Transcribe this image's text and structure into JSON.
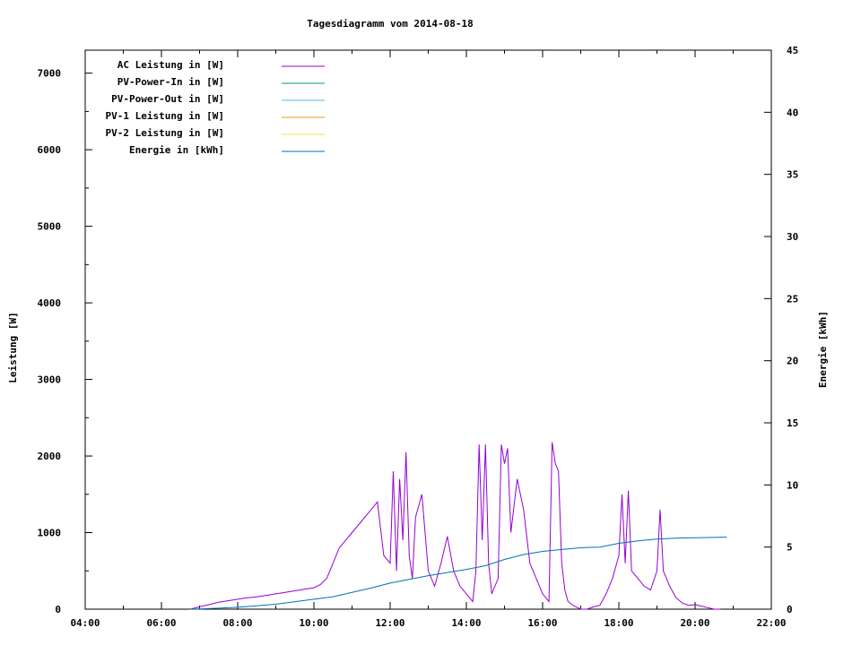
{
  "chart_data": {
    "type": "line",
    "title": "Tagesdiagramm vom 2014-08-18",
    "ylabel": "Leistung [W]",
    "y2label": "Energie [kWh]",
    "xlim": [
      "04:00",
      "22:00"
    ],
    "ylim": [
      0,
      7300
    ],
    "y2lim": [
      0,
      45
    ],
    "x_ticks": [
      "04:00",
      "06:00",
      "08:00",
      "10:00",
      "12:00",
      "14:00",
      "16:00",
      "18:00",
      "20:00",
      "22:00"
    ],
    "y_ticks": [
      0,
      1000,
      2000,
      3000,
      4000,
      5000,
      6000,
      7000
    ],
    "y2_ticks": [
      0,
      5,
      10,
      15,
      20,
      25,
      30,
      35,
      40,
      45
    ],
    "grid": false,
    "legend_position": "top-left",
    "series": [
      {
        "name": "AC Leistung in [W]",
        "axis": "y",
        "color": "#9400d3",
        "x": [
          "06:45",
          "07:00",
          "07:15",
          "07:30",
          "07:45",
          "08:00",
          "08:15",
          "08:30",
          "08:45",
          "09:00",
          "09:15",
          "09:30",
          "09:45",
          "10:00",
          "10:10",
          "10:20",
          "10:30",
          "10:40",
          "10:50",
          "11:00",
          "11:10",
          "11:20",
          "11:30",
          "11:40",
          "11:50",
          "12:00",
          "12:05",
          "12:10",
          "12:15",
          "12:20",
          "12:25",
          "12:30",
          "12:35",
          "12:40",
          "12:50",
          "13:00",
          "13:10",
          "13:20",
          "13:30",
          "13:40",
          "13:50",
          "14:00",
          "14:10",
          "14:15",
          "14:20",
          "14:25",
          "14:30",
          "14:35",
          "14:40",
          "14:50",
          "14:55",
          "15:00",
          "15:05",
          "15:10",
          "15:20",
          "15:30",
          "15:40",
          "15:50",
          "16:00",
          "16:10",
          "16:15",
          "16:20",
          "16:25",
          "16:30",
          "16:35",
          "16:40",
          "16:50",
          "17:00",
          "17:10",
          "17:20",
          "17:30",
          "17:40",
          "17:50",
          "18:00",
          "18:05",
          "18:10",
          "18:15",
          "18:20",
          "18:30",
          "18:40",
          "18:50",
          "19:00",
          "19:05",
          "19:10",
          "19:20",
          "19:30",
          "19:40",
          "19:50",
          "20:00",
          "20:10",
          "20:20",
          "20:30",
          "20:40"
        ],
        "values": [
          0,
          30,
          60,
          90,
          110,
          130,
          150,
          160,
          180,
          200,
          220,
          240,
          260,
          280,
          320,
          400,
          600,
          800,
          900,
          1000,
          1100,
          1200,
          1300,
          1400,
          700,
          600,
          1800,
          500,
          1700,
          900,
          2050,
          700,
          400,
          1200,
          1500,
          500,
          300,
          600,
          950,
          500,
          300,
          200,
          100,
          500,
          2150,
          900,
          2150,
          600,
          200,
          400,
          2150,
          1900,
          2100,
          1000,
          1700,
          1300,
          600,
          400,
          200,
          100,
          2180,
          1900,
          1800,
          600,
          250,
          100,
          40,
          0,
          0,
          30,
          50,
          200,
          400,
          700,
          1500,
          600,
          1550,
          500,
          400,
          300,
          250,
          500,
          1300,
          500,
          300,
          150,
          80,
          50,
          60,
          40,
          20,
          0,
          0
        ]
      },
      {
        "name": "PV-Power-In in [W]",
        "axis": "y",
        "color": "#009e73",
        "x": [],
        "values": []
      },
      {
        "name": "PV-Power-Out in [W]",
        "axis": "y",
        "color": "#56b4e9",
        "x": [],
        "values": []
      },
      {
        "name": "PV-1 Leistung in [W]",
        "axis": "y",
        "color": "#e69f00",
        "x": [],
        "values": []
      },
      {
        "name": "PV-2 Leistung in [W]",
        "axis": "y",
        "color": "#f0e442",
        "x": [],
        "values": []
      },
      {
        "name": "Energie in [kWh]",
        "axis": "y2",
        "color": "#0072b2",
        "x": [
          "06:45",
          "07:00",
          "08:00",
          "09:00",
          "10:00",
          "10:30",
          "11:00",
          "11:30",
          "12:00",
          "12:30",
          "13:00",
          "13:30",
          "14:00",
          "14:30",
          "15:00",
          "15:30",
          "16:00",
          "16:30",
          "17:00",
          "17:30",
          "18:00",
          "18:30",
          "19:00",
          "19:30",
          "20:00",
          "20:30",
          "20:50"
        ],
        "values": [
          0,
          0.02,
          0.15,
          0.4,
          0.8,
          1.0,
          1.35,
          1.7,
          2.1,
          2.4,
          2.7,
          2.95,
          3.2,
          3.5,
          4.0,
          4.4,
          4.65,
          4.8,
          4.95,
          5.0,
          5.3,
          5.5,
          5.65,
          5.72,
          5.75,
          5.78,
          5.8
        ]
      }
    ]
  }
}
